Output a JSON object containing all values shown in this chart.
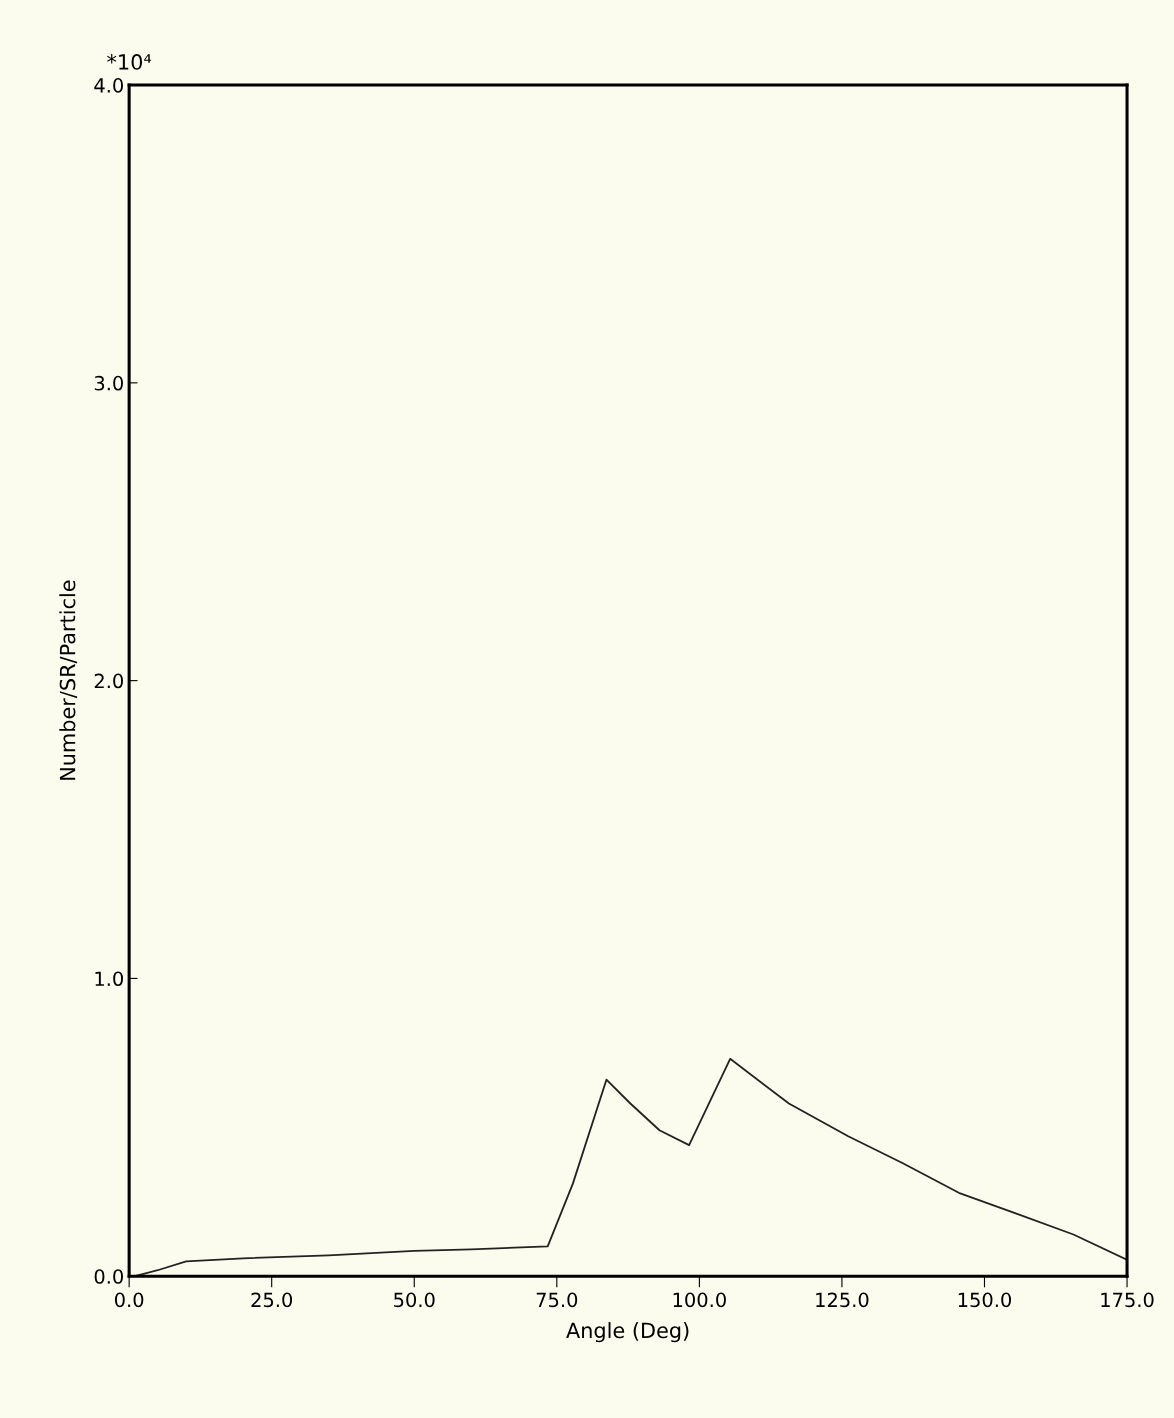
{
  "chart_data": {
    "type": "line",
    "xlabel": "Angle (Deg)",
    "ylabel": "Number/SR/Particle",
    "annotations": [
      "*10⁴"
    ],
    "x": [
      1,
      5,
      10,
      20,
      35,
      50,
      60,
      73.4,
      77.8,
      83.7,
      87.9,
      93,
      98.2,
      105.4,
      115.7,
      126.1,
      135.6,
      145.5,
      155.6,
      165.6,
      175
    ],
    "series": [
      {
        "color": "#222222",
        "values": [
          0.0,
          0.02,
          0.05,
          0.06,
          0.07,
          0.085,
          0.09,
          0.1,
          0.31,
          0.66,
          0.58,
          0.49,
          0.44,
          0.73,
          0.58,
          0.47,
          0.38,
          0.28,
          0.21,
          0.14,
          0.055
        ]
      }
    ],
    "xlim": [
      0,
      175
    ],
    "xticks": [
      {
        "value": 0,
        "label": "0.0"
      },
      {
        "value": 25,
        "label": "25.0"
      },
      {
        "value": 50,
        "label": "50.0"
      },
      {
        "value": 75,
        "label": "75.0"
      },
      {
        "value": 100,
        "label": "100.0"
      },
      {
        "value": 125,
        "label": "125.0"
      },
      {
        "value": 150,
        "label": "150.0"
      },
      {
        "value": 175,
        "label": "175.0"
      }
    ],
    "ylim": [
      0,
      4
    ],
    "yticks": [
      {
        "value": 0,
        "label": "0.0"
      },
      {
        "value": 1,
        "label": "1.0"
      },
      {
        "value": 2,
        "label": "2.0"
      },
      {
        "value": 3,
        "label": "3.0"
      },
      {
        "value": 4,
        "label": "4.0"
      }
    ],
    "grid": false,
    "legend": false
  }
}
